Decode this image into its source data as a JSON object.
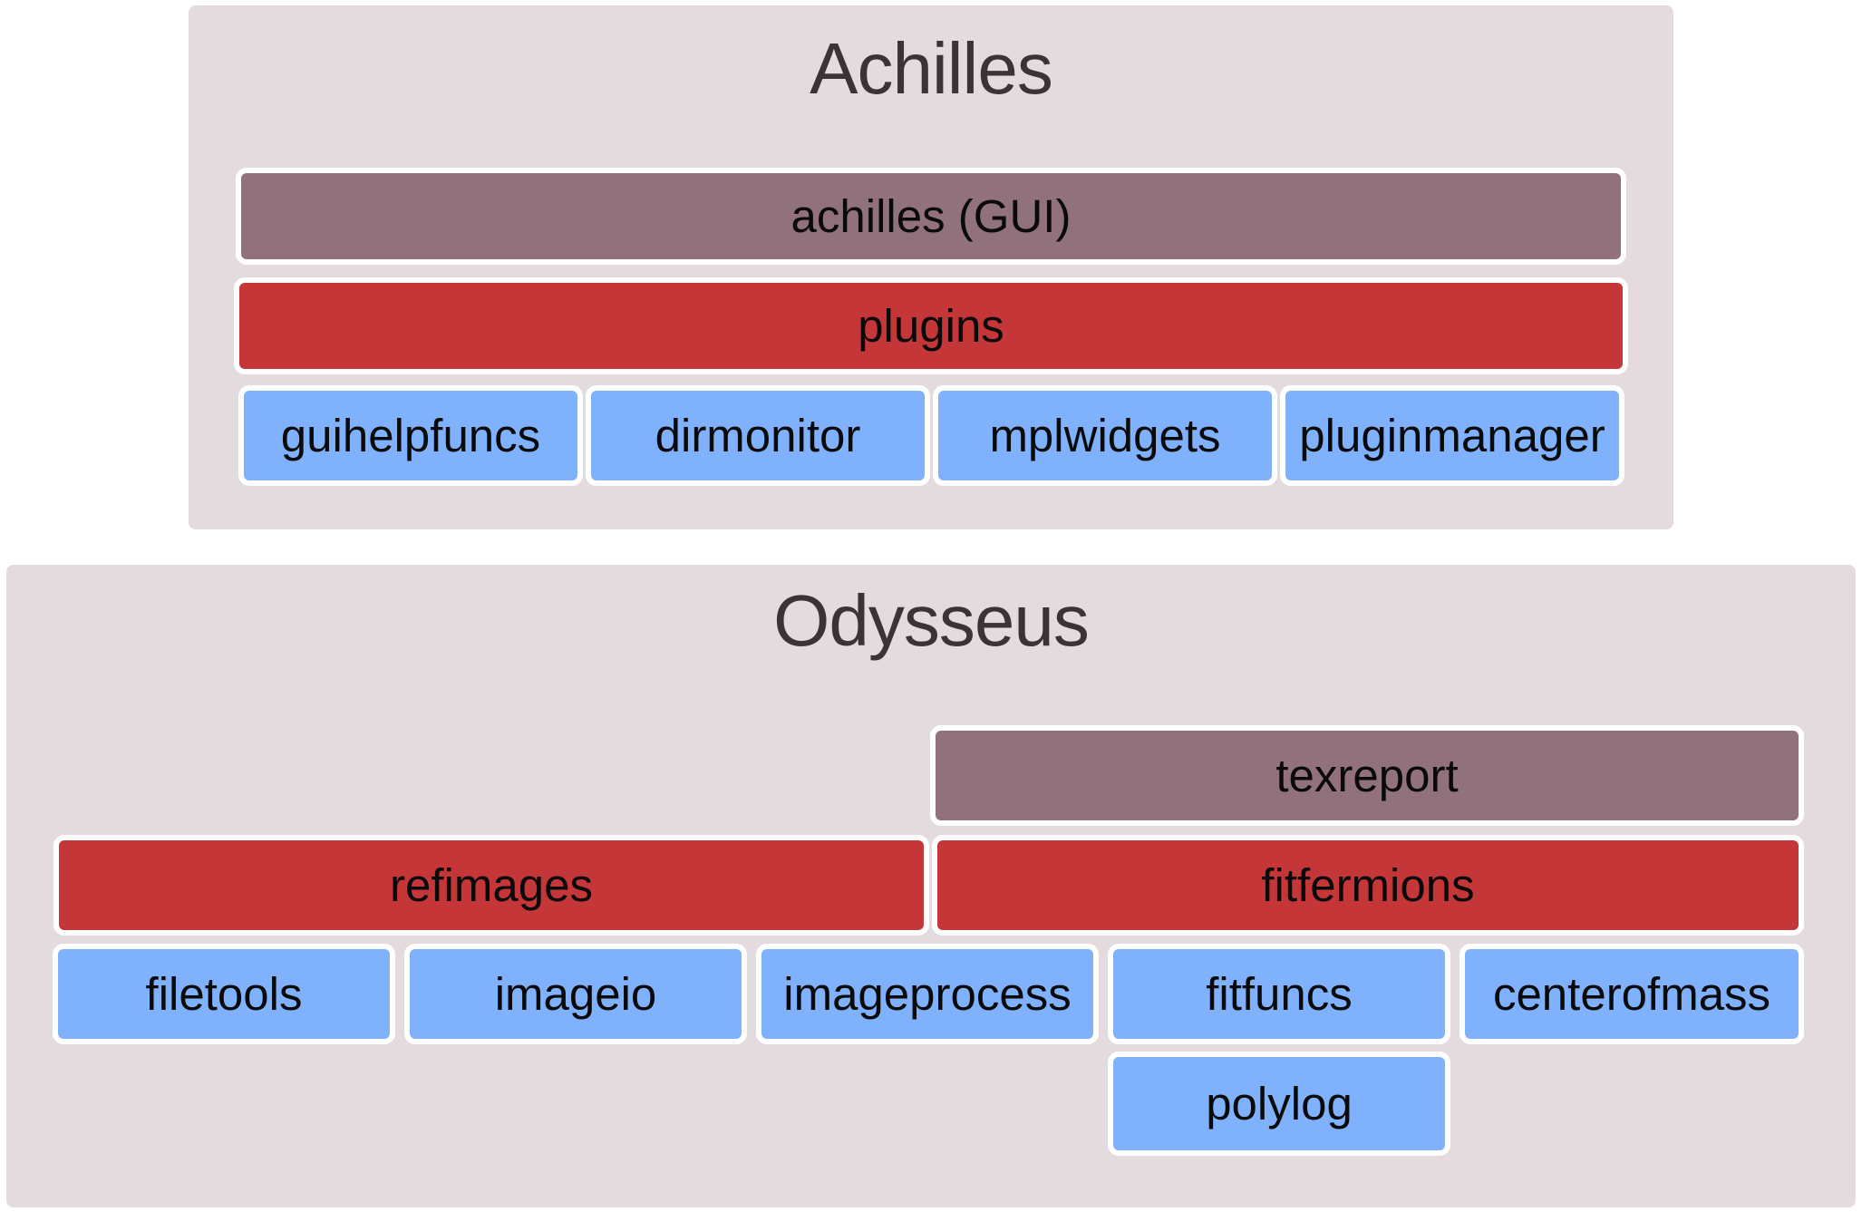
{
  "achilles": {
    "title": "Achilles",
    "gui": "achilles (GUI)",
    "plugins": "plugins",
    "modules": [
      "guihelpfuncs",
      "dirmonitor",
      "mplwidgets",
      "pluginmanager"
    ]
  },
  "odysseus": {
    "title": "Odysseus",
    "texreport": "texreport",
    "refimages": "refimages",
    "fitfermions": "fitfermions",
    "modules": [
      "filetools",
      "imageio",
      "imageprocess",
      "fitfuncs",
      "centerofmass",
      "polylog"
    ]
  },
  "colors": {
    "panel_background": "#e3dbde",
    "top_layer": "#91717b",
    "middle_layer": "#c53638",
    "base_module": "#80b1fd",
    "box_border": "#ffffff",
    "title_text": "#3d3335"
  }
}
